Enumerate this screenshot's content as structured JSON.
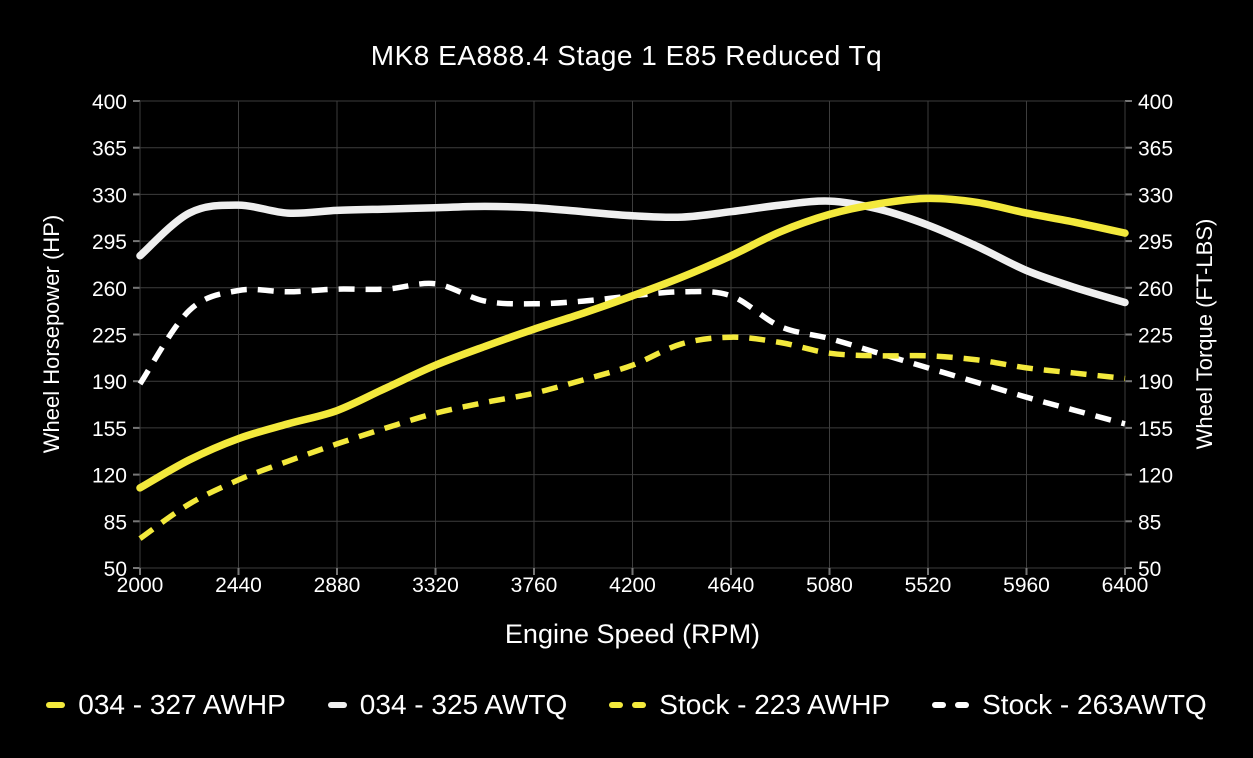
{
  "title": "MK8 EA888.4 Stage 1 E85 Reduced Tq",
  "chart_data": {
    "type": "line",
    "title": "MK8 EA888.4 Stage 1 E85 Reduced Tq",
    "xlabel": "Engine Speed (RPM)",
    "ylabel_left": "Wheel Horsepower (HP)",
    "ylabel_right": "Wheel Torque (FT-LBS)",
    "xlim": [
      2000,
      6400
    ],
    "ylim": [
      50,
      400
    ],
    "x_ticks": [
      2000,
      2440,
      2880,
      3320,
      3760,
      4200,
      4640,
      5080,
      5520,
      5960,
      6400
    ],
    "y_ticks": [
      50,
      85,
      120,
      155,
      190,
      225,
      260,
      295,
      330,
      365,
      400
    ],
    "grid": true,
    "legend_position": "bottom",
    "colors": {
      "background": "#000000",
      "text": "#ffffff",
      "grid": "#3d3d3d",
      "tick": "#777777",
      "accent_yellow": "#f3e93c",
      "accent_white": "#efefef"
    },
    "x": [
      2000,
      2220,
      2440,
      2660,
      2880,
      3100,
      3320,
      3540,
      3760,
      3980,
      4200,
      4420,
      4640,
      4860,
      5080,
      5300,
      5520,
      5740,
      5960,
      6180,
      6400
    ],
    "series": [
      {
        "name": "034 - 327 AWHP",
        "peak_value": 327,
        "color": "#f3e93c",
        "style": "solid",
        "values": [
          110,
          131,
          147,
          158,
          168,
          185,
          202,
          216,
          229,
          241,
          254,
          268,
          284,
          302,
          315,
          323,
          327,
          324,
          316,
          309,
          301
        ]
      },
      {
        "name": "034 - 325 AWTQ",
        "peak_value": 325,
        "color": "#efefef",
        "style": "solid",
        "values": [
          284,
          316,
          322,
          316,
          318,
          319,
          320,
          321,
          320,
          317,
          314,
          313,
          317,
          322,
          325,
          319,
          307,
          291,
          273,
          260,
          249
        ]
      },
      {
        "name": "Stock - 223 AWHP",
        "peak_value": 223,
        "color": "#f3e93c",
        "style": "dashed",
        "values": [
          72,
          98,
          116,
          130,
          143,
          155,
          166,
          174,
          181,
          191,
          202,
          218,
          223,
          219,
          211,
          209,
          209,
          206,
          200,
          196,
          192
        ]
      },
      {
        "name": "Stock - 263AWTQ",
        "peak_value": 263,
        "color": "#ffffff",
        "style": "dashed",
        "values": [
          188,
          243,
          258,
          257,
          259,
          259,
          263,
          250,
          248,
          250,
          254,
          257,
          254,
          231,
          222,
          211,
          200,
          189,
          178,
          168,
          158
        ]
      }
    ]
  }
}
